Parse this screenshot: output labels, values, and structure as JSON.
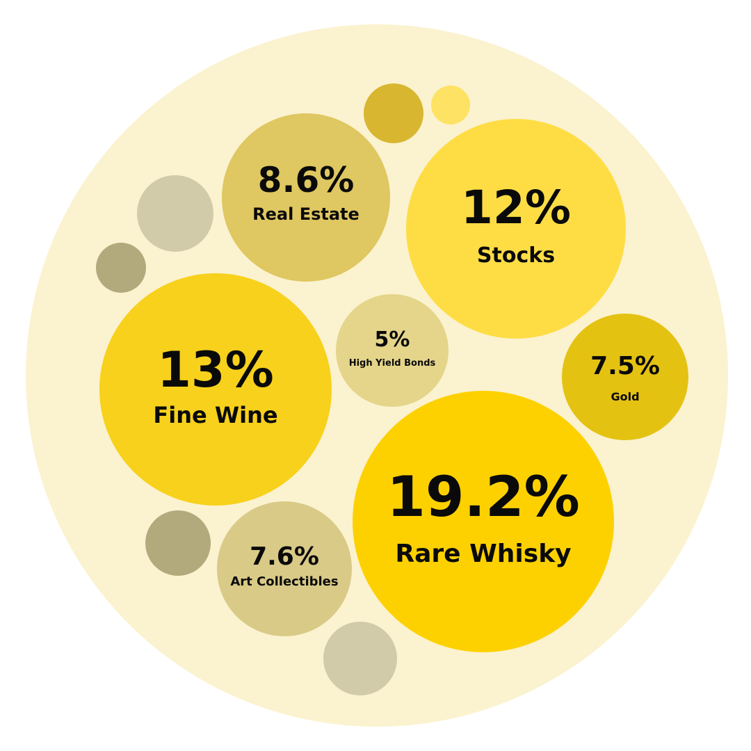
{
  "chart_data": {
    "type": "bubble",
    "title": "",
    "unit": "%",
    "background_color": "#fbf2cf",
    "bubbles": [
      {
        "label": "Rare Whisky",
        "value_text": "19.2%",
        "value": 19.2,
        "color": "#fdd100"
      },
      {
        "label": "Fine Wine",
        "value_text": "13%",
        "value": 13,
        "color": "#f7d11b"
      },
      {
        "label": "Stocks",
        "value_text": "12%",
        "value": 12,
        "color": "#fedd44"
      },
      {
        "label": "Real Estate",
        "value_text": "8.6%",
        "value": 8.6,
        "color": "#dfc761"
      },
      {
        "label": "Art Collectibles",
        "value_text": "7.6%",
        "value": 7.6,
        "color": "#d9ca87"
      },
      {
        "label": "Gold",
        "value_text": "7.5%",
        "value": 7.5,
        "color": "#e4c211"
      },
      {
        "label": "High Yield Bonds",
        "value_text": "5%",
        "value": 5,
        "color": "#e4d58a"
      }
    ],
    "decorative_bubbles": [
      {
        "color": "#d8b630"
      },
      {
        "color": "#fee264"
      },
      {
        "color": "#d1cba9"
      },
      {
        "color": "#b2a97c"
      },
      {
        "color": "#b2a97c"
      },
      {
        "color": "#d1cba9"
      }
    ]
  }
}
